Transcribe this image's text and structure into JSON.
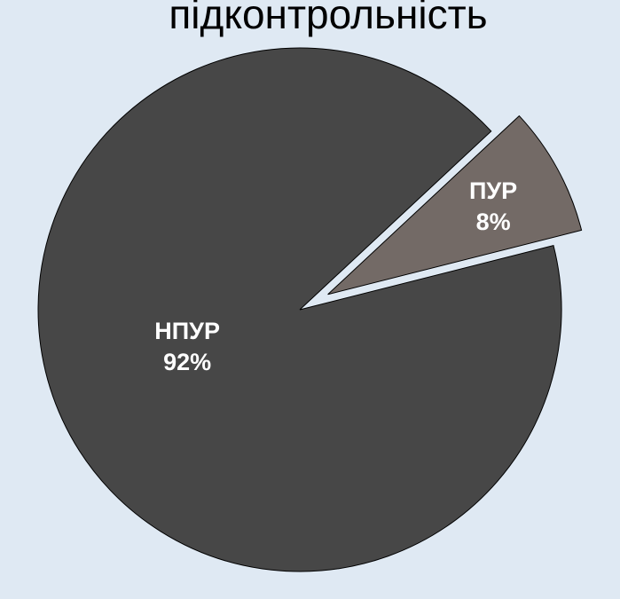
{
  "chart_data": {
    "type": "pie",
    "title": "підконтрольність",
    "categories": [
      "ПУР",
      "НПУР"
    ],
    "values": [
      8,
      92
    ],
    "value_labels": [
      "8%",
      "92%"
    ],
    "colors": [
      "#736a66",
      "#474747"
    ]
  }
}
